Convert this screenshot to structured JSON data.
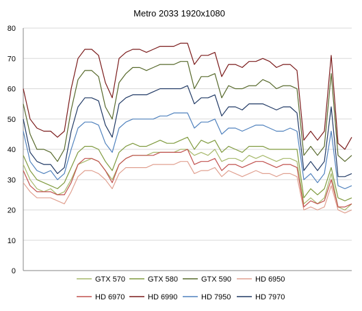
{
  "chart_data": {
    "type": "line",
    "title": "Metro 2033 1920x1080",
    "xlabel": "",
    "ylabel": "",
    "ylim": [
      0,
      80
    ],
    "yticks": [
      0,
      10,
      20,
      30,
      40,
      50,
      60,
      70,
      80
    ],
    "grid": "horizontal",
    "legend_position": "bottom",
    "x": [
      0,
      10,
      20,
      30,
      40,
      50,
      60,
      70,
      80,
      90,
      100,
      110,
      120,
      130,
      140,
      150,
      160,
      170,
      180,
      190,
      200,
      210,
      220,
      230,
      240,
      250,
      260,
      270,
      280,
      290,
      300,
      310,
      320,
      330,
      340,
      350,
      360,
      370,
      380,
      390,
      400,
      410,
      420,
      430,
      440,
      450,
      460,
      470,
      480
    ],
    "series": [
      {
        "name": "GTX 570",
        "color": "#a6b86a",
        "values": [
          35,
          30,
          27,
          26,
          27,
          25,
          26,
          30,
          35,
          36,
          37,
          36,
          33,
          30,
          35,
          37,
          38,
          38,
          38,
          39,
          39,
          39,
          39,
          40,
          40,
          38,
          39,
          38,
          40,
          36,
          37,
          37,
          36,
          38,
          37,
          38,
          37,
          36,
          37,
          37,
          36,
          22,
          24,
          22,
          24,
          32,
          21,
          20,
          22
        ]
      },
      {
        "name": "GTX 580",
        "color": "#7f9a3e",
        "values": [
          38,
          33,
          30,
          29,
          28,
          27,
          29,
          34,
          39,
          41,
          41,
          40,
          36,
          33,
          39,
          41,
          42,
          41,
          41,
          42,
          43,
          42,
          42,
          43,
          44,
          40,
          43,
          42,
          43,
          39,
          41,
          40,
          39,
          41,
          41,
          41,
          40,
          40,
          40,
          40,
          40,
          24,
          27,
          25,
          27,
          34,
          24,
          23,
          24
        ]
      },
      {
        "name": "GTX 590",
        "color": "#56682a",
        "values": [
          55,
          45,
          40,
          40,
          39,
          36,
          40,
          53,
          63,
          66,
          66,
          64,
          54,
          50,
          62,
          65,
          67,
          67,
          66,
          67,
          68,
          68,
          68,
          69,
          69,
          60,
          64,
          64,
          65,
          57,
          61,
          60,
          60,
          61,
          61,
          63,
          62,
          60,
          61,
          61,
          60,
          38,
          41,
          38,
          41,
          65,
          38,
          36,
          38
        ]
      },
      {
        "name": "HD 6950",
        "color": "#e0a090",
        "values": [
          29,
          26,
          24,
          24,
          24,
          23,
          22,
          26,
          31,
          33,
          33,
          32,
          30,
          27,
          32,
          34,
          34,
          34,
          34,
          35,
          35,
          35,
          35,
          36,
          36,
          32,
          33,
          33,
          34,
          31,
          33,
          32,
          31,
          32,
          33,
          32,
          32,
          31,
          32,
          32,
          31,
          20,
          21,
          20,
          21,
          28,
          20,
          19,
          20
        ]
      },
      {
        "name": "HD 6970",
        "color": "#c0504d",
        "values": [
          33,
          28,
          26,
          26,
          26,
          25,
          25,
          29,
          35,
          37,
          37,
          36,
          33,
          29,
          35,
          37,
          38,
          38,
          38,
          38,
          39,
          39,
          39,
          39,
          40,
          35,
          36,
          36,
          37,
          33,
          35,
          35,
          34,
          35,
          36,
          36,
          35,
          34,
          35,
          35,
          34,
          21,
          23,
          22,
          23,
          30,
          21,
          21,
          22
        ]
      },
      {
        "name": "HD 6990",
        "color": "#7a1a1a",
        "values": [
          60,
          50,
          47,
          46,
          46,
          44,
          46,
          60,
          70,
          73,
          73,
          71,
          62,
          57,
          70,
          72,
          73,
          73,
          72,
          73,
          74,
          74,
          74,
          75,
          75,
          68,
          71,
          71,
          72,
          64,
          68,
          68,
          67,
          69,
          69,
          70,
          69,
          67,
          68,
          68,
          66,
          43,
          46,
          43,
          46,
          71,
          42,
          40,
          44
        ]
      },
      {
        "name": "HD 7950",
        "color": "#4f81bd",
        "values": [
          46,
          36,
          33,
          32,
          33,
          30,
          32,
          40,
          47,
          49,
          49,
          48,
          42,
          39,
          47,
          49,
          50,
          50,
          50,
          50,
          51,
          51,
          52,
          52,
          52,
          47,
          49,
          49,
          50,
          45,
          47,
          47,
          46,
          47,
          48,
          48,
          47,
          46,
          46,
          47,
          46,
          30,
          32,
          29,
          32,
          46,
          28,
          27,
          28
        ]
      },
      {
        "name": "HD 7970",
        "color": "#1f3864",
        "values": [
          50,
          39,
          36,
          35,
          35,
          32,
          34,
          46,
          54,
          57,
          57,
          56,
          48,
          44,
          55,
          57,
          58,
          58,
          58,
          59,
          60,
          60,
          60,
          60,
          61,
          55,
          57,
          57,
          58,
          51,
          54,
          54,
          53,
          55,
          55,
          55,
          54,
          53,
          54,
          54,
          52,
          33,
          36,
          33,
          36,
          54,
          31,
          31,
          32
        ]
      }
    ]
  }
}
